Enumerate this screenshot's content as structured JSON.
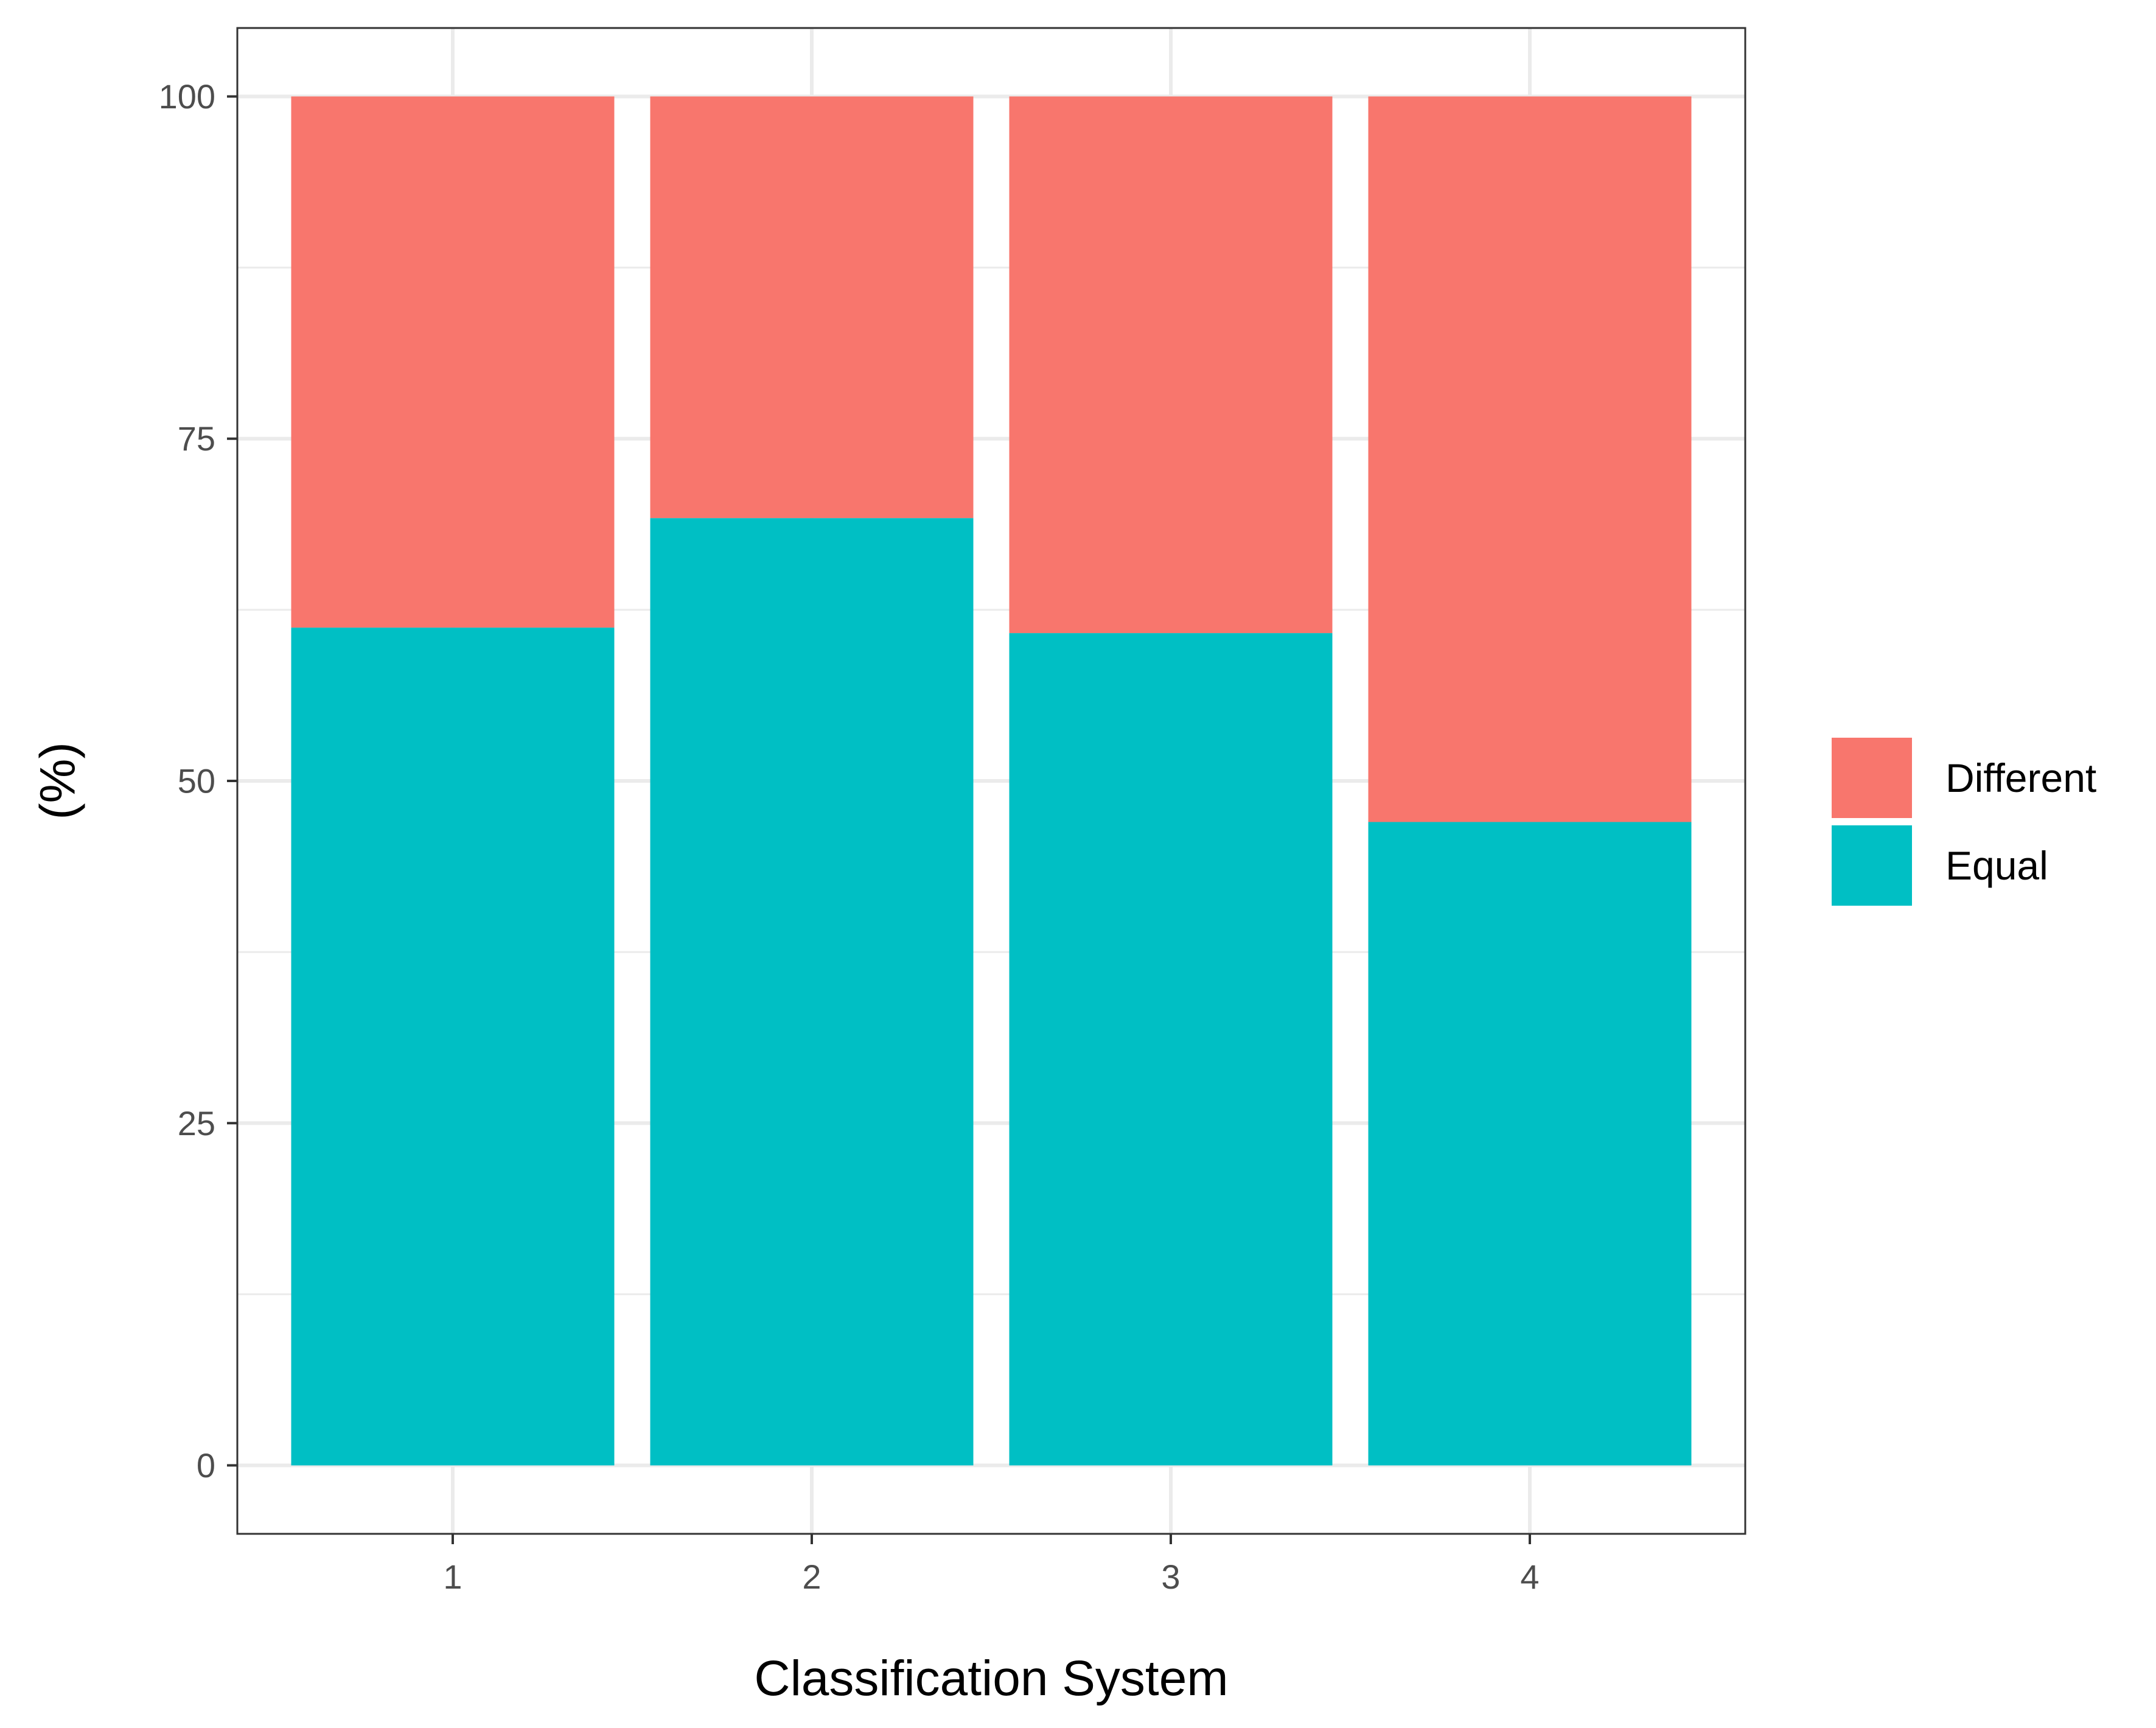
{
  "chart_data": {
    "type": "bar",
    "stacked": true,
    "categories": [
      "1",
      "2",
      "3",
      "4"
    ],
    "series": [
      {
        "name": "Equal",
        "values": [
          61.2,
          69.2,
          60.8,
          47.0
        ],
        "color": "#00BFC4"
      },
      {
        "name": "Different",
        "values": [
          38.8,
          30.8,
          39.2,
          53.0
        ],
        "color": "#F8766D"
      }
    ],
    "title": "",
    "xlabel": "Classification System",
    "ylabel": "(%)",
    "ylim": [
      -5,
      105
    ],
    "yticks": [
      0,
      25,
      50,
      75,
      100
    ],
    "grid": true,
    "legend": {
      "position": "right",
      "entries": [
        {
          "label": "Different",
          "color": "#F8766D"
        },
        {
          "label": "Equal",
          "color": "#00BFC4"
        }
      ]
    },
    "panel_background": "#FFFFFF",
    "grid_color": "#EBEBEB",
    "axis_text_color": "#4D4D4D",
    "border_color": "#333333"
  }
}
